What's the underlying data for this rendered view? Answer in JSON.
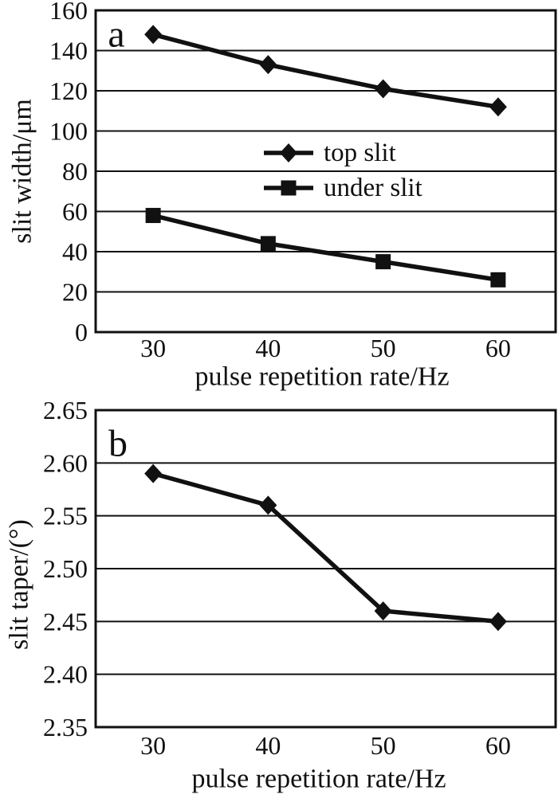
{
  "page": {
    "background": "#ffffff",
    "ink": "#111111"
  },
  "chart_data": [
    {
      "id": "a",
      "type": "line",
      "panel_label": "a",
      "x": [
        30,
        40,
        50,
        60
      ],
      "series": [
        {
          "name": "top slit",
          "marker": "diamond",
          "values": [
            148,
            133,
            121,
            112
          ]
        },
        {
          "name": "under slit",
          "marker": "square",
          "values": [
            58,
            44,
            35,
            26
          ]
        }
      ],
      "xlabel": "pulse repetition rate/Hz",
      "ylabel": "slit width/μm",
      "xlim": [
        25,
        65
      ],
      "ylim": [
        0,
        160
      ],
      "xticks": [
        30,
        40,
        50,
        60
      ],
      "xtick_labels": [
        "30",
        "40",
        "50",
        "60"
      ],
      "yticks": [
        0,
        20,
        40,
        60,
        80,
        100,
        120,
        140,
        160
      ],
      "ytick_labels": [
        "0",
        "20",
        "40",
        "60",
        "80",
        "100",
        "120",
        "140",
        "160"
      ],
      "grid": true,
      "legend": {
        "position": "inside-center-right",
        "entries": [
          "top slit",
          "under slit"
        ]
      },
      "line_color": "#111111",
      "marker_color": "#111111"
    },
    {
      "id": "b",
      "type": "line",
      "panel_label": "b",
      "x": [
        30,
        40,
        50,
        60
      ],
      "series": [
        {
          "name": "slit taper",
          "marker": "diamond",
          "values": [
            2.59,
            2.56,
            2.46,
            2.45
          ]
        }
      ],
      "xlabel": "pulse repetition rate/Hz",
      "ylabel": "slit taper/(°)",
      "xlim": [
        25,
        65
      ],
      "ylim": [
        2.35,
        2.65
      ],
      "xticks": [
        30,
        40,
        50,
        60
      ],
      "xtick_labels": [
        "30",
        "40",
        "50",
        "60"
      ],
      "yticks": [
        2.35,
        2.4,
        2.45,
        2.5,
        2.55,
        2.6,
        2.65
      ],
      "ytick_labels": [
        "2.35",
        "2.40",
        "2.45",
        "2.50",
        "2.55",
        "2.60",
        "2.65"
      ],
      "grid": true,
      "legend": null,
      "line_color": "#111111",
      "marker_color": "#111111"
    }
  ]
}
